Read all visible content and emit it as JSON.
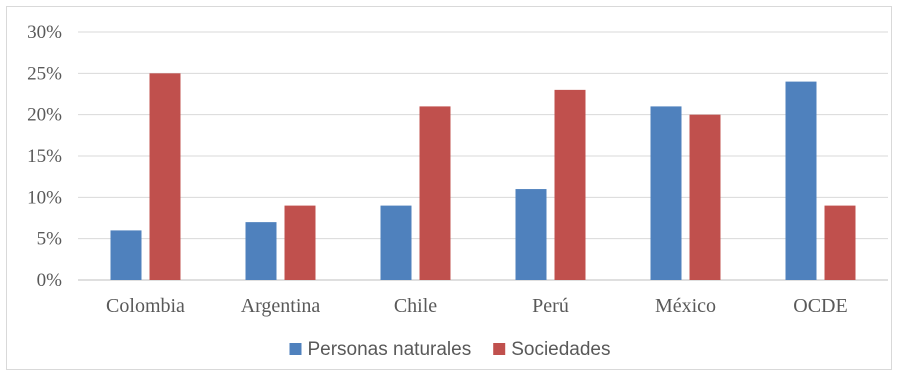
{
  "chart_data": {
    "type": "bar",
    "title": "",
    "xlabel": "",
    "ylabel": "",
    "ylim": [
      0,
      30
    ],
    "y_ticks": [
      "0%",
      "5%",
      "10%",
      "15%",
      "20%",
      "25%",
      "30%"
    ],
    "y_tick_values": [
      0,
      5,
      10,
      15,
      20,
      25,
      30
    ],
    "grid": true,
    "legend_position": "bottom",
    "categories": [
      "Colombia",
      "Argentina",
      "Chile",
      "Perú",
      "México",
      "OCDE"
    ],
    "series": [
      {
        "name": "Personas naturales",
        "color": "#4f81bd",
        "values": [
          6,
          7,
          9,
          11,
          21,
          24
        ]
      },
      {
        "name": "Sociedades",
        "color": "#c0504d",
        "values": [
          25,
          9,
          21,
          23,
          20,
          9
        ]
      }
    ]
  }
}
